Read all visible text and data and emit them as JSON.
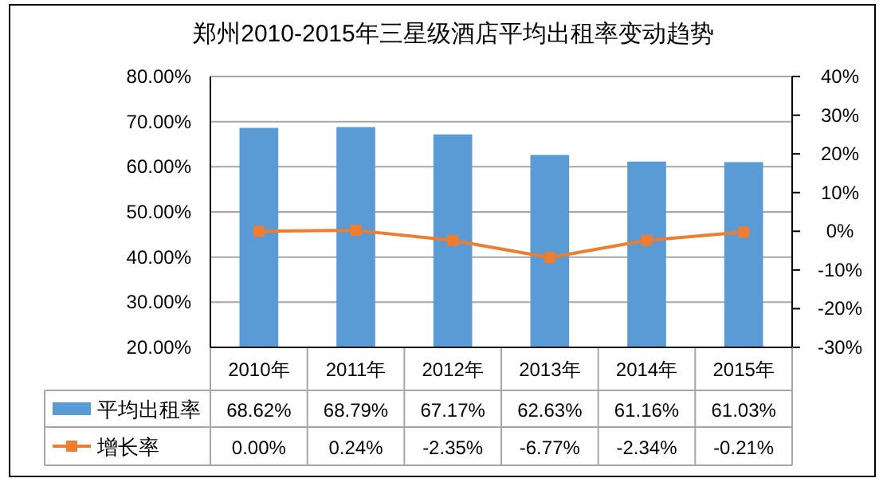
{
  "chart_data": {
    "type": "bar",
    "title": "郑州2010-2015年三星级酒店平均出租率变动趋势",
    "categories": [
      "2010年",
      "2011年",
      "2012年",
      "2013年",
      "2014年",
      "2015年"
    ],
    "series": [
      {
        "name": "平均出租率",
        "color": "#5b9bd5",
        "values": [
          68.62,
          68.79,
          67.17,
          62.63,
          61.16,
          61.03
        ],
        "value_labels": [
          "68.62%",
          "68.79%",
          "67.17%",
          "62.63%",
          "61.16%",
          "61.03%"
        ]
      },
      {
        "name": "增长率",
        "type": "line",
        "axis": "y2",
        "color": "#ed7d31",
        "marker": "square",
        "values": [
          0.0,
          0.24,
          -2.35,
          -6.77,
          -2.34,
          -0.21
        ],
        "value_labels": [
          "0.00%",
          "0.24%",
          "-2.35%",
          "-6.77%",
          "-2.34%",
          "-0.21%"
        ]
      }
    ],
    "ylim": [
      20,
      80
    ],
    "yticks": [
      {
        "value": 20,
        "label": "20.00%"
      },
      {
        "value": 30,
        "label": "30.00%"
      },
      {
        "value": 40,
        "label": "40.00%"
      },
      {
        "value": 50,
        "label": "50.00%"
      },
      {
        "value": 60,
        "label": "60.00%"
      },
      {
        "value": 70,
        "label": "70.00%"
      },
      {
        "value": 80,
        "label": "80.00%"
      }
    ],
    "y2lim": [
      -30,
      40
    ],
    "y2ticks": [
      {
        "value": -30,
        "label": "-30%"
      },
      {
        "value": -20,
        "label": "-20%"
      },
      {
        "value": -10,
        "label": "-10%"
      },
      {
        "value": 0,
        "label": "0%"
      },
      {
        "value": 10,
        "label": "10%"
      },
      {
        "value": 20,
        "label": "20%"
      },
      {
        "value": 30,
        "label": "30%"
      },
      {
        "value": 40,
        "label": "40%"
      }
    ],
    "grid": "y",
    "legend": "bottom"
  }
}
